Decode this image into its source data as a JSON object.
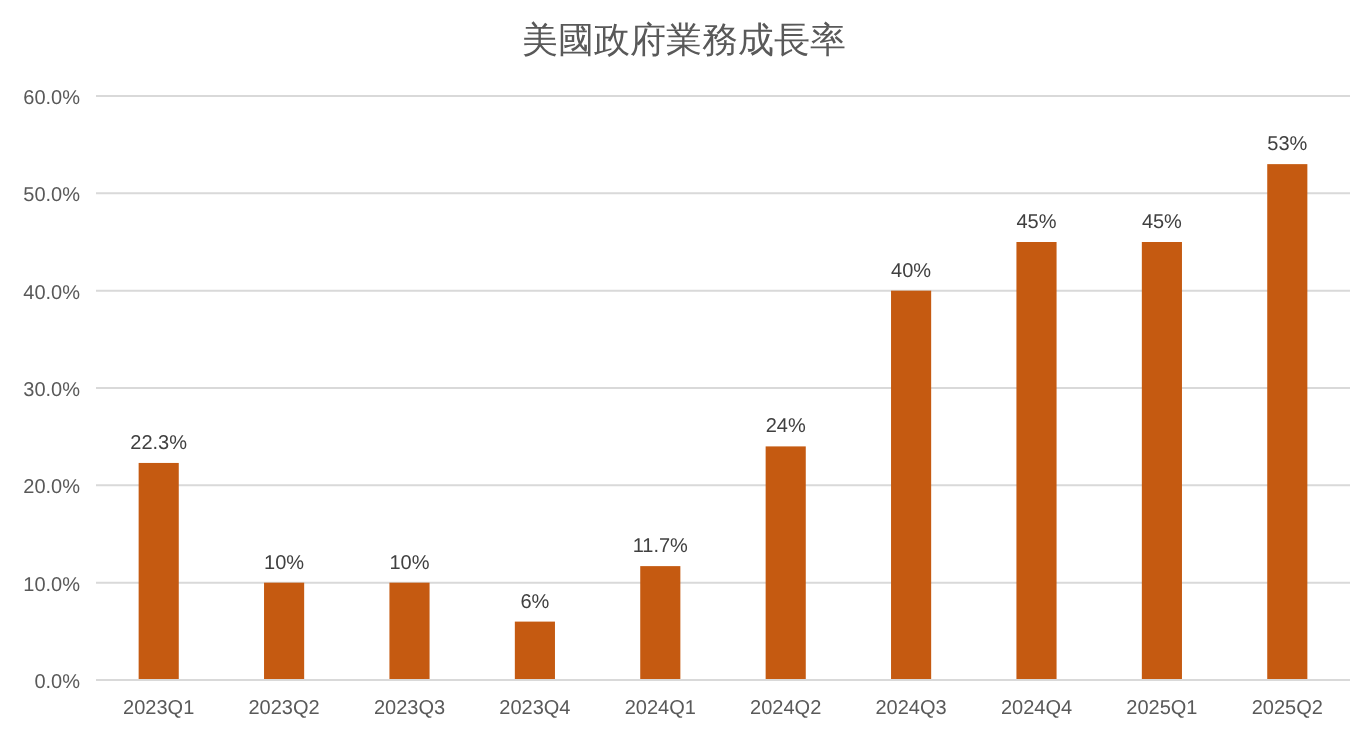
{
  "chart_data": {
    "type": "bar",
    "title": "美國政府業務成長率",
    "categories": [
      "2023Q1",
      "2023Q2",
      "2023Q3",
      "2023Q4",
      "2024Q1",
      "2024Q2",
      "2024Q3",
      "2024Q4",
      "2025Q1",
      "2025Q2"
    ],
    "values": [
      22.3,
      10,
      10,
      6,
      11.7,
      24,
      40,
      45,
      45,
      53
    ],
    "value_labels": [
      "22.3%",
      "10%",
      "10%",
      "6%",
      "11.7%",
      "24%",
      "40%",
      "45%",
      "45%",
      "53%"
    ],
    "color": "#c55a11",
    "ylim": [
      0,
      60
    ],
    "yticks": [
      {
        "value": 0,
        "label": "0.0%"
      },
      {
        "value": 10,
        "label": "10.0%"
      },
      {
        "value": 20,
        "label": "20.0%"
      },
      {
        "value": 30,
        "label": "30.0%"
      },
      {
        "value": 40,
        "label": "40.0%"
      },
      {
        "value": 50,
        "label": "50.0%"
      },
      {
        "value": 60,
        "label": "60.0%"
      }
    ],
    "grid": "y"
  }
}
